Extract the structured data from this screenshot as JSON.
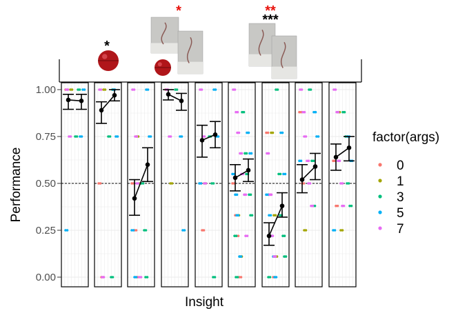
{
  "chart_data": {
    "type": "scatter",
    "title": "",
    "xlabel": "Insight",
    "ylabel": "Performance",
    "ylim": [
      0,
      1
    ],
    "y_ticks": [
      "0.00",
      "0.25",
      "0.50",
      "0.75",
      "1.00"
    ],
    "reference_line": 0.5,
    "legend": {
      "title": "factor(args)",
      "entries": [
        "0",
        "1",
        "3",
        "5",
        "7"
      ],
      "colors": [
        "#f8766d",
        "#a3a500",
        "#00bf7d",
        "#00b0f6",
        "#e76bf3"
      ],
      "placement": "right"
    },
    "panels": [
      {
        "means": [
          0.945,
          0.94
        ],
        "ci_low": [
          0.895,
          0.895
        ],
        "ci_high": [
          0.975,
          0.975
        ],
        "significance": [],
        "stimulus_icons": []
      },
      {
        "means": [
          0.89,
          0.97
        ],
        "ci_low": [
          0.82,
          0.94
        ],
        "ci_high": [
          0.935,
          1.0
        ],
        "significance": [
          {
            "text": "*",
            "color": "#000000"
          }
        ],
        "stimulus_icons": [
          "red-ball"
        ]
      },
      {
        "means": [
          0.42,
          0.6
        ],
        "ci_low": [
          0.33,
          0.51
        ],
        "ci_high": [
          0.52,
          0.69
        ],
        "significance": [],
        "stimulus_icons": []
      },
      {
        "means": [
          0.975,
          0.94
        ],
        "ci_low": [
          0.945,
          0.89
        ],
        "ci_high": [
          1.0,
          0.98
        ],
        "significance": [
          {
            "text": "*",
            "color": "#e8120c"
          }
        ],
        "stimulus_icons": [
          "photo",
          "red-ball"
        ]
      },
      {
        "means": [
          0.73,
          0.76
        ],
        "ci_low": [
          0.64,
          0.69
        ],
        "ci_high": [
          0.81,
          0.83
        ],
        "significance": [],
        "stimulus_icons": [
          "photo"
        ]
      },
      {
        "means": [
          0.53,
          0.57
        ],
        "ci_low": [
          0.46,
          0.51
        ],
        "ci_high": [
          0.6,
          0.63
        ],
        "significance": [],
        "stimulus_icons": []
      },
      {
        "means": [
          0.22,
          0.38
        ],
        "ci_low": [
          0.17,
          0.32
        ],
        "ci_high": [
          0.29,
          0.45
        ],
        "significance": [
          {
            "text": "**",
            "color": "#e8120c"
          },
          {
            "text": "***",
            "color": "#000000"
          }
        ],
        "stimulus_icons": [
          "photo",
          "photo"
        ]
      },
      {
        "means": [
          0.52,
          0.59
        ],
        "ci_low": [
          0.45,
          0.52
        ],
        "ci_high": [
          0.6,
          0.66
        ],
        "significance": [],
        "stimulus_icons": []
      },
      {
        "means": [
          0.64,
          0.69
        ],
        "ci_low": [
          0.57,
          0.62
        ],
        "ci_high": [
          0.71,
          0.75
        ],
        "significance": [],
        "stimulus_icons": []
      }
    ],
    "raw_points": [
      {
        "panel": 0,
        "values": {
          "0": [
            1.0
          ],
          "1": [
            1.0
          ],
          "3": [
            0.75,
            1.0
          ],
          "5": [
            0.75,
            1.0,
            0.25
          ],
          "7": [
            1.0,
            0.75
          ]
        }
      },
      {
        "panel": 1,
        "values": {
          "0": [
            0.5,
            0.0
          ],
          "1": [
            1.0
          ],
          "3": [
            0.75,
            0.0,
            1.0
          ],
          "5": [
            1.0,
            0.75
          ],
          "7": [
            1.0,
            0.0
          ]
        }
      },
      {
        "panel": 2,
        "values": {
          "0": [
            0.5,
            0.25,
            0.0
          ],
          "1": [
            0.75,
            0.5
          ],
          "3": [
            0.5,
            0.25,
            0.0
          ],
          "5": [
            1.0,
            0.75,
            0.25,
            0.0
          ],
          "7": [
            1.0,
            0.75,
            0.5,
            0.0
          ]
        }
      },
      {
        "panel": 3,
        "values": {
          "0": [
            1.0
          ],
          "1": [
            0.5
          ],
          "3": [
            1.0
          ],
          "5": [
            0.75,
            0.25
          ],
          "7": [
            1.0,
            0.75
          ]
        }
      },
      {
        "panel": 4,
        "values": {
          "0": [
            0.5,
            0.25
          ],
          "1": [
            0.5
          ],
          "3": [
            0.75,
            0.5,
            0.0
          ],
          "5": [
            1.0,
            0.75,
            0.5
          ],
          "7": [
            1.0,
            0.75,
            0.5
          ]
        }
      },
      {
        "panel": 5,
        "values": {
          "0": [
            0.5,
            0.33,
            0.22,
            0.0
          ],
          "1": [
            0.33,
            0.11
          ],
          "3": [
            0.88,
            0.66,
            0.55,
            0.44,
            0.33,
            0.22,
            0.0
          ],
          "5": [
            0.77,
            0.66,
            0.55,
            0.44,
            0.33,
            0.11
          ],
          "7": [
            1.0,
            0.88,
            0.77,
            0.66,
            0.55,
            0.44,
            0.22
          ]
        }
      },
      {
        "panel": 6,
        "values": {
          "0": [
            0.77,
            0.44,
            0.22,
            0.0
          ],
          "1": [
            0.77,
            0.33,
            0.11
          ],
          "3": [
            1.0,
            0.55,
            0.33,
            0.22,
            0.11,
            0.0
          ],
          "5": [
            0.77,
            0.55,
            0.44,
            0.33,
            0.22,
            0.11,
            0.0
          ],
          "7": [
            0.66,
            0.44,
            0.22,
            0.11
          ]
        }
      },
      {
        "panel": 7,
        "values": {
          "0": [
            0.88,
            0.5
          ],
          "1": [
            0.25
          ],
          "3": [
            1.0,
            0.62,
            0.38
          ],
          "5": [
            0.88,
            0.75,
            0.62
          ],
          "7": [
            1.0,
            0.88,
            0.75,
            0.62,
            0.5,
            0.38
          ]
        }
      },
      {
        "panel": 8,
        "values": {
          "0": [
            0.62,
            0.38
          ],
          "1": [
            0.88,
            0.25
          ],
          "3": [
            0.88,
            0.75,
            0.5,
            0.38
          ],
          "5": [
            0.75,
            0.62,
            0.25
          ],
          "7": [
            1.0,
            0.88,
            0.62,
            0.5,
            0.38
          ]
        }
      }
    ]
  }
}
